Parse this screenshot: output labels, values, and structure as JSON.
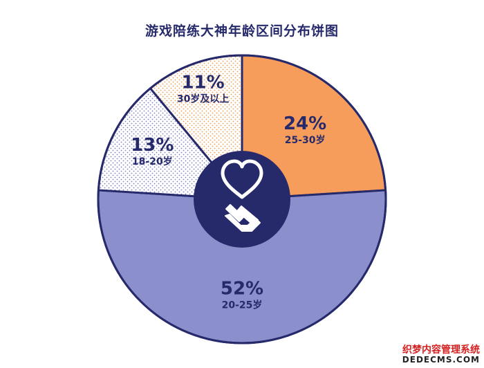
{
  "chart_data": {
    "type": "pie",
    "title": "游戏陪练大神年龄区间分布饼图",
    "slices": [
      {
        "label": "25-30岁",
        "percent_label": "24%",
        "value": 24,
        "color": "#f79d5c",
        "fill": "solid"
      },
      {
        "label": "20-25岁",
        "percent_label": "52%",
        "value": 52,
        "color": "#8b8fcc",
        "fill": "solid"
      },
      {
        "label": "18-20岁",
        "percent_label": "13%",
        "value": 13,
        "color": "#a5a8d8",
        "fill": "dotted"
      },
      {
        "label": "30岁及以上",
        "percent_label": "11%",
        "value": 11,
        "color": "#f2b57a",
        "fill": "dotted"
      }
    ],
    "center_icons": [
      "heart-icon",
      "finger-heart-icon"
    ],
    "outline_color": "#262a6b",
    "center_color": "#262a6b"
  },
  "watermark": {
    "line1": "织梦内容管理系统",
    "line2": "DEDECMS.COM"
  }
}
